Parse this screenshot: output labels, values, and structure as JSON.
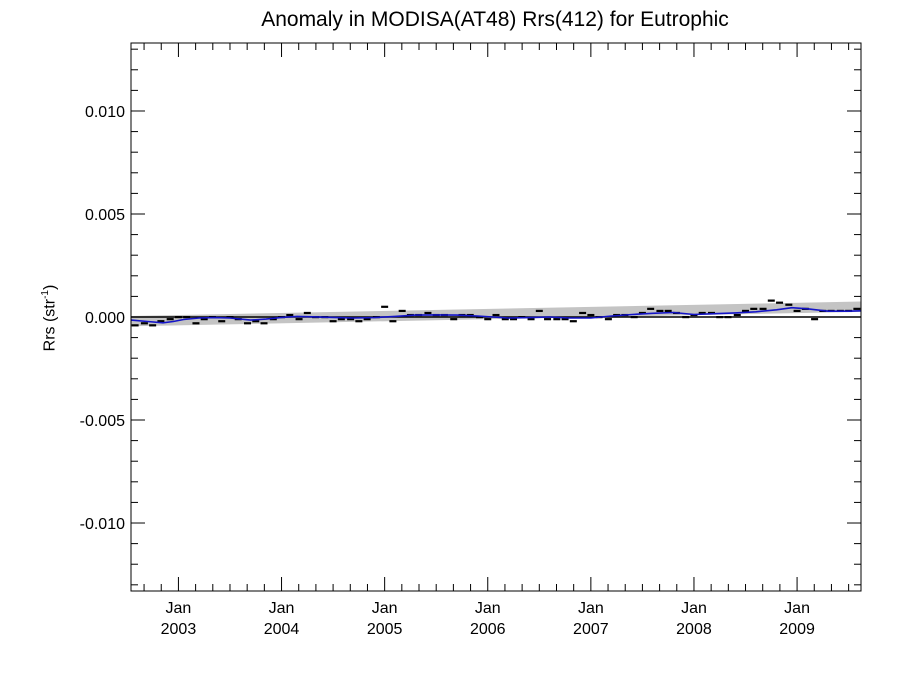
{
  "chart_data": {
    "type": "line",
    "title": "Anomaly in MODISA(AT48) Rrs(412) for Eutrophic",
    "xlabel": "",
    "ylabel": "Rrs (str",
    "ylabel_sup": "-1",
    "ylabel_close": ")",
    "xlim": [
      2002.54,
      2009.62
    ],
    "ylim": [
      -0.0133,
      0.0133
    ],
    "yticks": [
      -0.01,
      -0.005,
      0.0,
      0.005,
      0.01
    ],
    "ytick_labels": [
      "-0.010",
      "-0.005",
      "0.000",
      "0.005",
      "0.010"
    ],
    "xticks": [
      {
        "x": 2003.0,
        "month": "Jan",
        "year": "2003"
      },
      {
        "x": 2004.0,
        "month": "Jan",
        "year": "2004"
      },
      {
        "x": 2005.0,
        "month": "Jan",
        "year": "2005"
      },
      {
        "x": 2006.0,
        "month": "Jan",
        "year": "2006"
      },
      {
        "x": 2007.0,
        "month": "Jan",
        "year": "2007"
      },
      {
        "x": 2008.0,
        "month": "Jan",
        "year": "2008"
      },
      {
        "x": 2009.0,
        "month": "Jan",
        "year": "2009"
      }
    ],
    "zero_line": 0.0,
    "trend_band": {
      "x": [
        2002.54,
        2009.62
      ],
      "lower": [
        -0.00045,
        0.00025
      ],
      "upper": [
        5e-05,
        0.00075
      ]
    },
    "series": [
      {
        "type": "points",
        "color": "#000000",
        "x": [
          2002.58,
          2002.67,
          2002.75,
          2002.83,
          2002.92,
          2003.0,
          2003.08,
          2003.17,
          2003.25,
          2003.33,
          2003.42,
          2003.5,
          2003.58,
          2003.67,
          2003.75,
          2003.83,
          2003.92,
          2004.0,
          2004.08,
          2004.17,
          2004.25,
          2004.33,
          2004.42,
          2004.5,
          2004.58,
          2004.67,
          2004.75,
          2004.83,
          2004.92,
          2005.0,
          2005.08,
          2005.17,
          2005.25,
          2005.33,
          2005.42,
          2005.5,
          2005.58,
          2005.67,
          2005.75,
          2005.83,
          2005.92,
          2006.0,
          2006.08,
          2006.17,
          2006.25,
          2006.33,
          2006.42,
          2006.5,
          2006.58,
          2006.67,
          2006.75,
          2006.83,
          2006.92,
          2007.0,
          2007.08,
          2007.17,
          2007.25,
          2007.33,
          2007.42,
          2007.5,
          2007.58,
          2007.67,
          2007.75,
          2007.83,
          2007.92,
          2008.0,
          2008.08,
          2008.17,
          2008.25,
          2008.33,
          2008.42,
          2008.5,
          2008.58,
          2008.67,
          2008.75,
          2008.83,
          2008.92,
          2009.0,
          2009.08,
          2009.17,
          2009.25,
          2009.33,
          2009.42,
          2009.5,
          2009.58
        ],
        "y": [
          -0.0004,
          -0.0003,
          -0.0004,
          -0.0002,
          -0.0001,
          0.0,
          0.0,
          -0.0003,
          -0.0001,
          0.0,
          -0.0002,
          0.0,
          -0.0001,
          -0.0003,
          -0.0002,
          -0.0003,
          -0.0001,
          0.0,
          0.0001,
          -0.0001,
          0.0002,
          0.0,
          0.0,
          -0.0002,
          -0.0001,
          -0.0001,
          -0.0002,
          -0.0001,
          0.0,
          0.0005,
          -0.0002,
          0.0003,
          0.0001,
          0.0001,
          0.0002,
          0.0001,
          0.0001,
          -0.0001,
          0.0001,
          0.0001,
          0.0,
          -0.0001,
          0.0001,
          -0.0001,
          -0.0001,
          0.0,
          -0.0001,
          0.0003,
          -0.0001,
          -0.0001,
          -0.0001,
          -0.0002,
          0.0002,
          0.0001,
          0.0,
          -0.0001,
          0.0001,
          0.0001,
          0.0,
          0.0002,
          0.0004,
          0.0003,
          0.0003,
          0.0002,
          0.0,
          0.0001,
          0.0002,
          0.0002,
          0.0,
          0.0,
          0.0001,
          0.0003,
          0.0004,
          0.0004,
          0.0008,
          0.0007,
          0.0006,
          0.0003,
          0.0004,
          -0.0001,
          0.0003,
          0.0003,
          0.0003,
          0.0003,
          0.0004
        ]
      },
      {
        "type": "line",
        "color": "#1414c8",
        "x": [
          2002.54,
          2002.7,
          2002.85,
          2002.95,
          2003.05,
          2003.2,
          2003.35,
          2003.5,
          2003.7,
          2003.85,
          2004.0,
          2004.15,
          2004.3,
          2004.5,
          2004.7,
          2004.9,
          2005.1,
          2005.3,
          2005.5,
          2005.7,
          2005.9,
          2006.05,
          2006.2,
          2006.4,
          2006.6,
          2006.8,
          2007.0,
          2007.2,
          2007.4,
          2007.6,
          2007.8,
          2008.0,
          2008.2,
          2008.4,
          2008.6,
          2008.8,
          2008.95,
          2009.1,
          2009.3,
          2009.5,
          2009.62
        ],
        "y": [
          -0.00015,
          -0.00022,
          -0.00028,
          -0.00022,
          -0.00012,
          -5e-05,
          -3e-05,
          -5e-05,
          -0.00015,
          -0.0001,
          -2e-05,
          3e-05,
          1e-05,
          -2e-05,
          -5e-05,
          -3e-05,
          3e-05,
          9e-05,
          0.0001,
          9e-05,
          5e-05,
          0.0,
          -5e-05,
          -3e-05,
          0.0,
          -5e-05,
          -5e-05,
          5e-05,
          0.00012,
          0.00018,
          0.00022,
          0.00012,
          0.00016,
          0.0002,
          0.00025,
          0.00035,
          0.00045,
          0.0004,
          0.00028,
          0.00028,
          0.0003
        ]
      }
    ],
    "grid": false,
    "legend": "none"
  }
}
